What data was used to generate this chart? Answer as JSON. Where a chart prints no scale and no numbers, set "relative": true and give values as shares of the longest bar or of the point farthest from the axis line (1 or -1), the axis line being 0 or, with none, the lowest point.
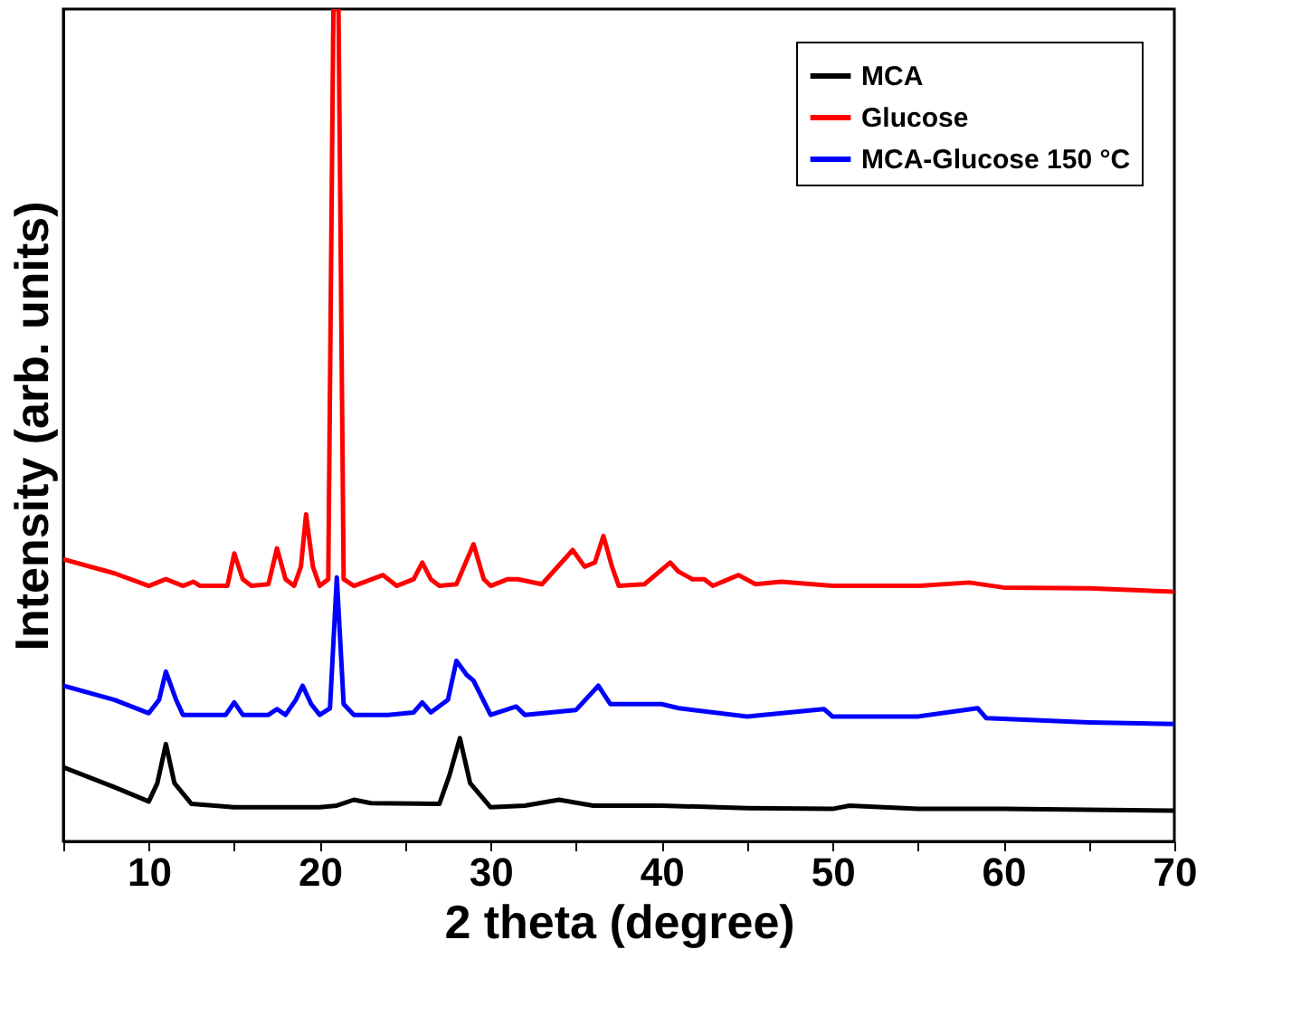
{
  "chart_data": {
    "type": "line",
    "relative": true,
    "xlabel": "2 theta (degree)",
    "ylabel": "Intensity (arb. units)",
    "xlim": [
      5,
      70
    ],
    "xticks": [
      {
        "value": 5,
        "label": null
      },
      10,
      {
        "value": 15,
        "label": null
      },
      20,
      {
        "value": 25,
        "label": null
      },
      30,
      {
        "value": 35,
        "label": null
      },
      40,
      {
        "value": 45,
        "label": null
      },
      50,
      {
        "value": 55,
        "label": null
      },
      60,
      {
        "value": 65,
        "label": null
      },
      70
    ],
    "legend": "top right",
    "grid": false,
    "tick_labels": "x",
    "line_style": "solid",
    "marker": "none",
    "series": [
      {
        "name": "MCA",
        "color": "#000000",
        "x": [
          5,
          8,
          10,
          10.5,
          11,
          11.5,
          12.5,
          15,
          20,
          21,
          22,
          23,
          27,
          27.6,
          28.2,
          28.8,
          30,
          32,
          34,
          36,
          40,
          45,
          50,
          51,
          55,
          60,
          70
        ],
        "values": [
          0.089,
          0.065,
          0.048,
          0.07,
          0.117,
          0.07,
          0.045,
          0.041,
          0.041,
          0.043,
          0.05,
          0.046,
          0.045,
          0.08,
          0.124,
          0.07,
          0.041,
          0.043,
          0.05,
          0.043,
          0.043,
          0.04,
          0.039,
          0.043,
          0.039,
          0.039,
          0.037
        ]
      },
      {
        "name": "Glucose",
        "color": "#ff0000",
        "x": [
          5,
          8,
          10,
          11,
          12,
          12.6,
          13,
          14.6,
          15,
          15.5,
          16,
          17,
          17.5,
          18,
          18.5,
          18.9,
          19.2,
          19.6,
          20,
          20.5,
          20.8,
          21.1,
          21.4,
          22,
          23.7,
          24.5,
          25.5,
          26,
          26.5,
          27,
          28,
          29,
          29.6,
          30,
          31,
          31.6,
          33,
          34.8,
          35.5,
          36.1,
          36.6,
          37.1,
          37.5,
          39,
          40.5,
          41,
          41.8,
          42.5,
          43,
          44.5,
          45.5,
          47,
          50,
          55,
          58,
          60,
          65,
          70
        ],
        "values": [
          0.339,
          0.322,
          0.307,
          0.315,
          0.307,
          0.312,
          0.307,
          0.307,
          0.346,
          0.315,
          0.307,
          0.309,
          0.352,
          0.315,
          0.307,
          0.33,
          0.393,
          0.33,
          0.307,
          0.315,
          1.0,
          1.0,
          0.315,
          0.307,
          0.32,
          0.307,
          0.315,
          0.335,
          0.315,
          0.307,
          0.309,
          0.357,
          0.315,
          0.307,
          0.315,
          0.315,
          0.309,
          0.35,
          0.33,
          0.335,
          0.367,
          0.33,
          0.307,
          0.309,
          0.335,
          0.324,
          0.315,
          0.315,
          0.307,
          0.32,
          0.309,
          0.312,
          0.307,
          0.307,
          0.311,
          0.305,
          0.304,
          0.3
        ]
      },
      {
        "name": "MCA-Glucose 150 °C",
        "color": "#0000ff",
        "x": [
          5,
          8,
          10,
          10.6,
          11,
          11.6,
          12,
          14.5,
          15,
          15.5,
          17,
          17.5,
          18,
          18.6,
          19,
          19.5,
          20,
          20.6,
          21,
          21.4,
          22,
          24,
          25.5,
          26,
          26.5,
          27.5,
          28,
          28.6,
          29,
          30,
          31.5,
          32,
          35,
          36.3,
          37,
          40,
          41,
          45,
          49.5,
          50,
          55,
          58.5,
          59,
          65,
          70
        ],
        "values": [
          0.187,
          0.17,
          0.154,
          0.17,
          0.204,
          0.17,
          0.152,
          0.152,
          0.167,
          0.152,
          0.152,
          0.159,
          0.152,
          0.17,
          0.187,
          0.165,
          0.152,
          0.16,
          0.317,
          0.165,
          0.152,
          0.152,
          0.155,
          0.167,
          0.155,
          0.17,
          0.217,
          0.2,
          0.193,
          0.152,
          0.162,
          0.152,
          0.158,
          0.187,
          0.165,
          0.165,
          0.16,
          0.15,
          0.159,
          0.15,
          0.15,
          0.16,
          0.148,
          0.143,
          0.141
        ]
      }
    ]
  }
}
